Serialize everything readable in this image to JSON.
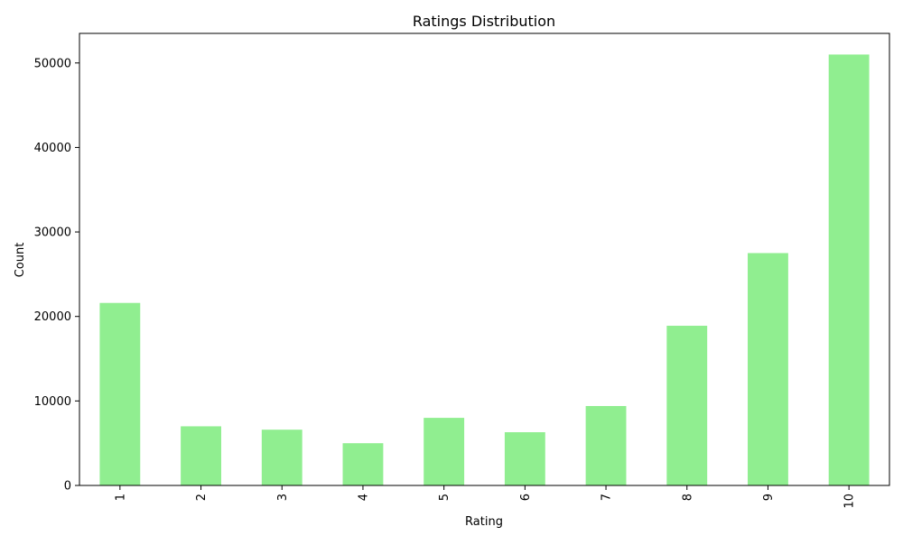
{
  "chart_data": {
    "type": "bar",
    "title": "Ratings Distribution",
    "xlabel": "Rating",
    "ylabel": "Count",
    "categories": [
      "1",
      "2",
      "3",
      "4",
      "5",
      "6",
      "7",
      "8",
      "9",
      "10"
    ],
    "values": [
      21600,
      7000,
      6600,
      5000,
      8000,
      6300,
      9400,
      18900,
      27500,
      51000
    ],
    "ylim": [
      0,
      53500
    ],
    "yticks": [
      0,
      10000,
      20000,
      30000,
      40000,
      50000
    ],
    "bar_color": "#90ee90",
    "grid": false,
    "x_tick_rotation": "vertical"
  }
}
